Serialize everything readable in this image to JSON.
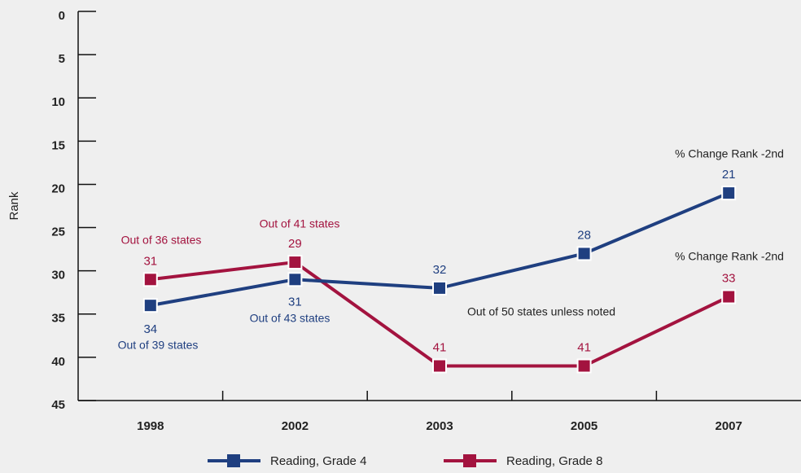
{
  "chart_data": {
    "type": "line",
    "y_label": "Rank",
    "categories": [
      "1998",
      "2002",
      "2003",
      "2005",
      "2007"
    ],
    "series": [
      {
        "name": "Reading, Grade 4",
        "color": "#1f3f80",
        "values": [
          34,
          31,
          32,
          28,
          21
        ]
      },
      {
        "name": "Reading, Grade 8",
        "color": "#a3133f",
        "values": [
          31,
          29,
          41,
          41,
          33
        ]
      }
    ],
    "ylim": [
      0,
      45
    ],
    "yticks": [
      0,
      5,
      10,
      15,
      20,
      25,
      30,
      35,
      40,
      45
    ],
    "y_inverted": true,
    "annotations": [
      {
        "text": "Out of 36 states",
        "color": "#a3133f"
      },
      {
        "text": "Out of 41 states",
        "color": "#a3133f"
      },
      {
        "text": "Out of 39 states",
        "color": "#1f3f80"
      },
      {
        "text": "Out of 43 states",
        "color": "#1f3f80"
      },
      {
        "text": "Out of 50 states unless noted",
        "color": "#222222"
      },
      {
        "text": "% Change Rank -2nd",
        "color": "#222222"
      },
      {
        "text": "% Change Rank -2nd",
        "color": "#222222"
      }
    ]
  }
}
